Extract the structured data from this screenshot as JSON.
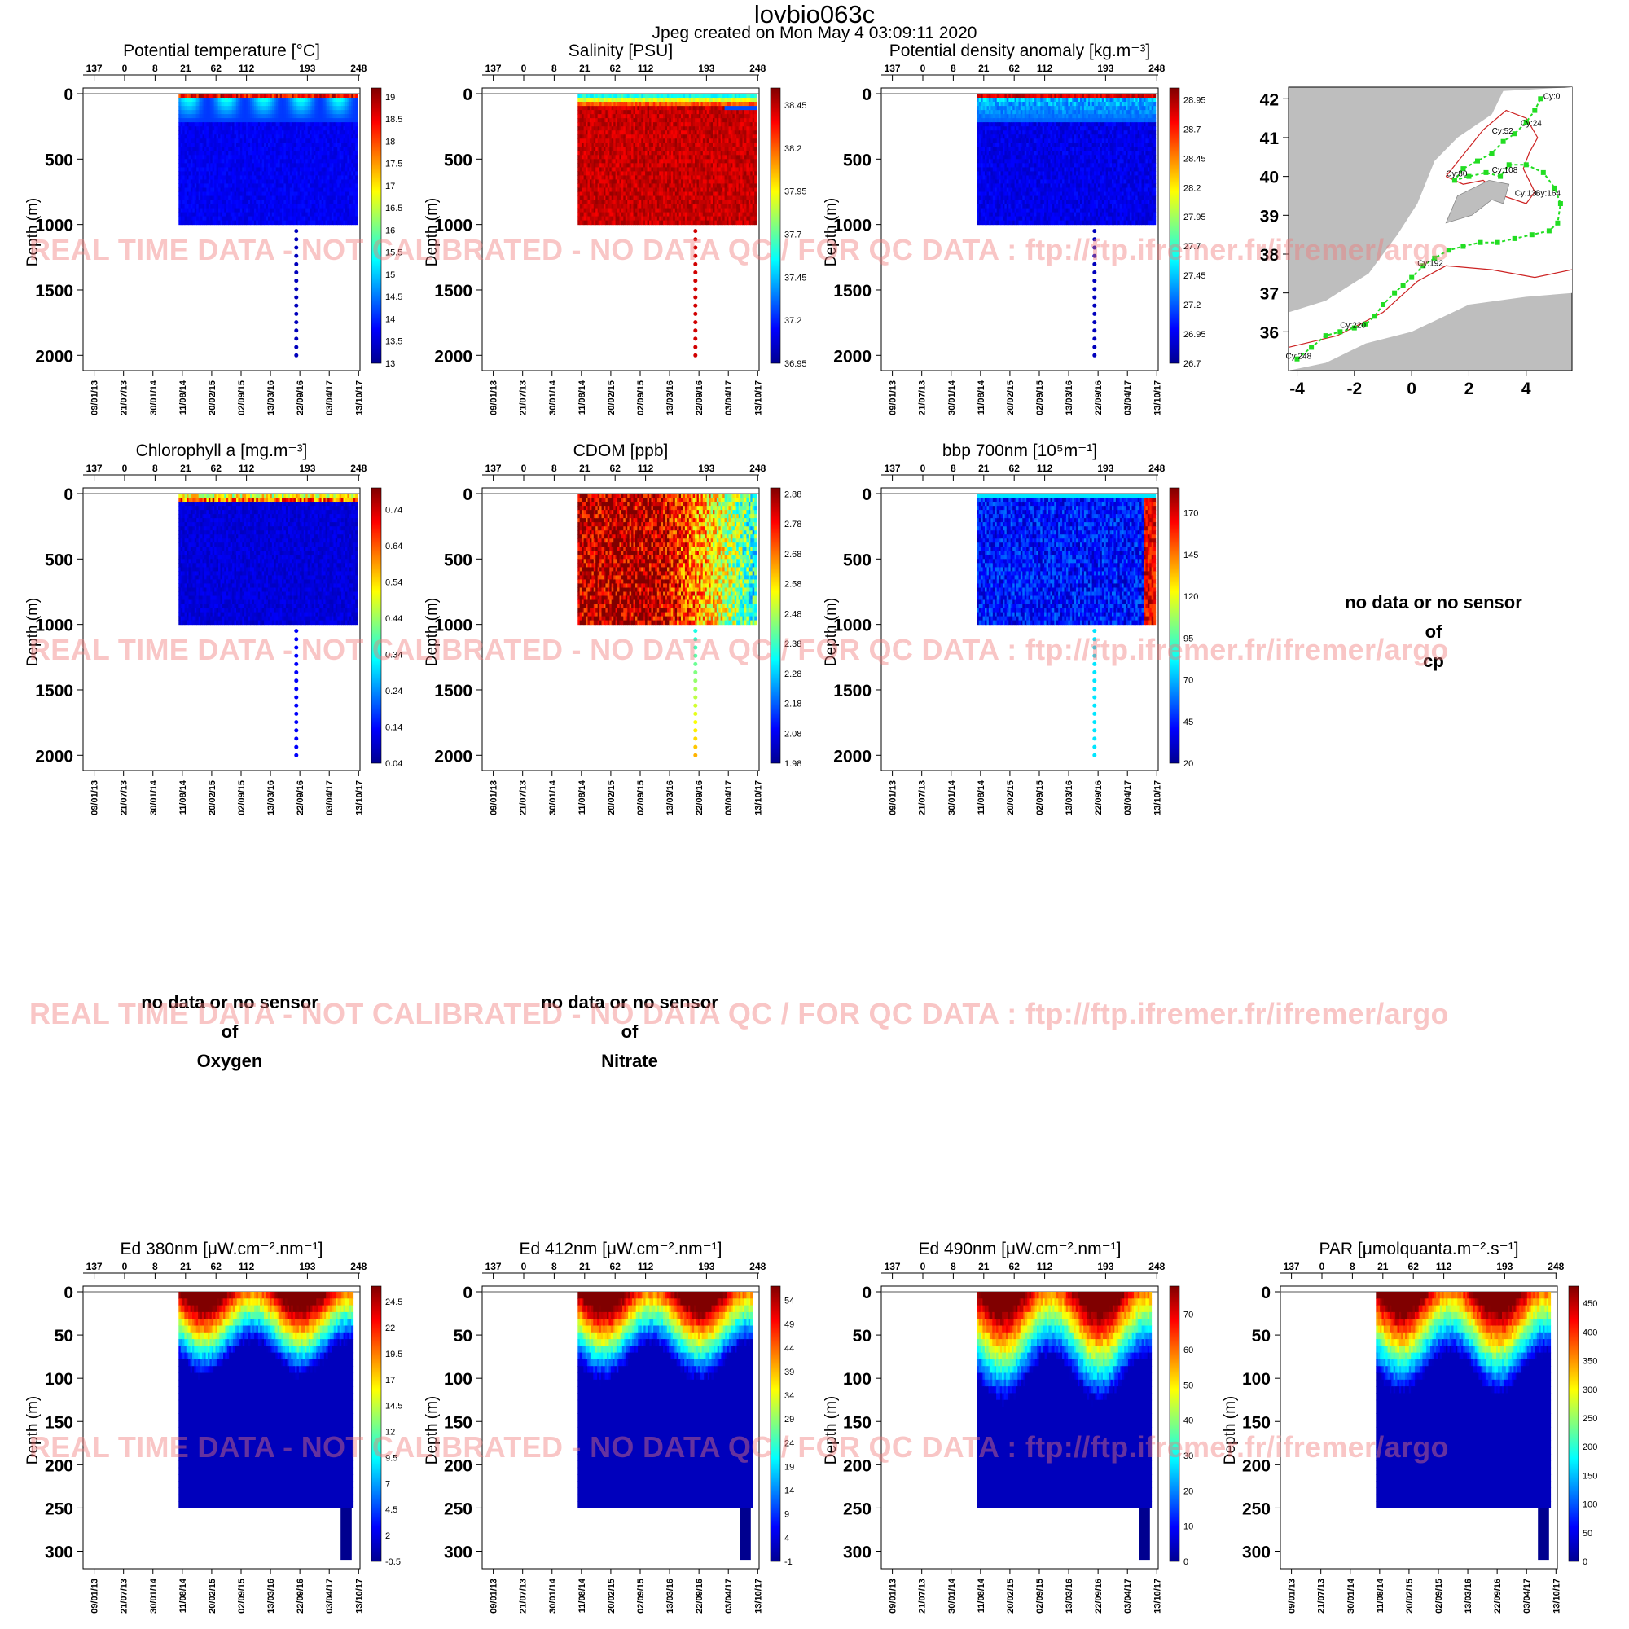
{
  "header": {
    "title": "lovbio063c",
    "subtitle": "Jpeg created on  Mon May  4 03:09:11 2020"
  },
  "watermark": "REAL TIME DATA - NOT CALIBRATED - NO DATA QC   /  FOR QC DATA : ftp://ftp.ifremer.fr/ifremer/argo",
  "no_data_panels": [
    {
      "line1": "no data or no sensor",
      "line2": "of",
      "line3": "cp"
    },
    {
      "line1": "no data or no sensor",
      "line2": "of",
      "line3": "Oxygen"
    },
    {
      "line1": "no data or no sensor",
      "line2": "of",
      "line3": "Nitrate"
    }
  ],
  "colors": {
    "colormap": [
      "#00008f",
      "#0000ff",
      "#0080ff",
      "#00ffff",
      "#80ff80",
      "#ffff00",
      "#ff8000",
      "#ff0000",
      "#800000"
    ],
    "land": "#bebebe",
    "sea": "#ffffff",
    "track": "#22dd22",
    "isobath_red": "#cc2222",
    "watermark": "#f07878"
  },
  "chart_data": [
    {
      "type": "heatmap",
      "title": "Potential temperature [°C]",
      "ylabel": "Depth (m)",
      "cycle_ticks": [
        "137",
        "0",
        "8",
        "21",
        "62",
        "112",
        "193",
        "248"
      ],
      "date_ticks": [
        "09/01/13",
        "21/07/13",
        "30/01/14",
        "11/08/14",
        "20/02/15",
        "02/09/15",
        "13/03/16",
        "22/09/16",
        "03/04/17",
        "13/10/17"
      ],
      "ylim": [
        2000,
        0
      ],
      "y_ticks": [
        "0",
        "500",
        "1000",
        "1500",
        "2000"
      ],
      "colorbar": {
        "range": [
          13,
          19.2
        ],
        "tick_labels": [
          "19",
          "18.5",
          "18",
          "17.5",
          "17",
          "16.5",
          "16",
          "15.5",
          "15",
          "14.5",
          "14",
          "13.5",
          "13"
        ]
      },
      "profile_depth_max": 1000,
      "deep_profile_depth": 2000
    },
    {
      "type": "heatmap",
      "title": "Salinity [PSU]",
      "ylabel": "Depth (m)",
      "cycle_ticks": [
        "137",
        "0",
        "8",
        "21",
        "62",
        "112",
        "193",
        "248"
      ],
      "date_ticks": [
        "09/01/13",
        "21/07/13",
        "30/01/14",
        "11/08/14",
        "20/02/15",
        "02/09/15",
        "13/03/16",
        "22/09/16",
        "03/04/17",
        "13/10/17"
      ],
      "ylim": [
        2000,
        0
      ],
      "y_ticks": [
        "0",
        "500",
        "1000",
        "1500",
        "2000"
      ],
      "colorbar": {
        "range": [
          36.95,
          38.55
        ],
        "tick_labels": [
          "38.45",
          "38.2",
          "37.95",
          "37.7",
          "37.45",
          "37.2",
          "36.95"
        ]
      },
      "profile_depth_max": 1000,
      "deep_profile_depth": 2000
    },
    {
      "type": "heatmap",
      "title": "Potential density anomaly [kg.m⁻³]",
      "ylabel": "Depth (m)",
      "cycle_ticks": [
        "137",
        "0",
        "8",
        "21",
        "62",
        "112",
        "193",
        "248"
      ],
      "date_ticks": [
        "09/01/13",
        "21/07/13",
        "30/01/14",
        "11/08/14",
        "20/02/15",
        "02/09/15",
        "13/03/16",
        "22/09/16",
        "03/04/17",
        "13/10/17"
      ],
      "ylim": [
        2000,
        0
      ],
      "y_ticks": [
        "0",
        "500",
        "1000",
        "1500",
        "2000"
      ],
      "colorbar": {
        "range": [
          26.7,
          29.05
        ],
        "tick_labels": [
          "28.95",
          "28.7",
          "28.45",
          "28.2",
          "27.95",
          "27.7",
          "27.45",
          "27.2",
          "26.95",
          "26.7"
        ]
      },
      "profile_depth_max": 1000,
      "deep_profile_depth": 2000
    },
    {
      "type": "heatmap",
      "title": "Chlorophyll a [mg.m⁻³]",
      "ylabel": "Depth (m)",
      "cycle_ticks": [
        "137",
        "0",
        "8",
        "21",
        "62",
        "112",
        "193",
        "248"
      ],
      "date_ticks": [
        "09/01/13",
        "21/07/13",
        "30/01/14",
        "11/08/14",
        "20/02/15",
        "02/09/15",
        "13/03/16",
        "22/09/16",
        "03/04/17",
        "13/10/17"
      ],
      "ylim": [
        2000,
        0
      ],
      "y_ticks": [
        "0",
        "500",
        "1000",
        "1500",
        "2000"
      ],
      "colorbar": {
        "range": [
          0.04,
          0.8
        ],
        "tick_labels": [
          "0.74",
          "0.64",
          "0.54",
          "0.44",
          "0.34",
          "0.24",
          "0.14",
          "0.04"
        ]
      },
      "profile_depth_max": 1000,
      "deep_profile_depth": 2000
    },
    {
      "type": "heatmap",
      "title": "CDOM  [ppb]",
      "ylabel": "Depth (m)",
      "cycle_ticks": [
        "137",
        "0",
        "8",
        "21",
        "62",
        "112",
        "193",
        "248"
      ],
      "date_ticks": [
        "09/01/13",
        "21/07/13",
        "30/01/14",
        "11/08/14",
        "20/02/15",
        "02/09/15",
        "13/03/16",
        "22/09/16",
        "03/04/17",
        "13/10/17"
      ],
      "ylim": [
        2000,
        0
      ],
      "y_ticks": [
        "0",
        "500",
        "1000",
        "1500",
        "2000"
      ],
      "colorbar": {
        "range": [
          1.98,
          2.9
        ],
        "tick_labels": [
          "2.88",
          "2.78",
          "2.68",
          "2.58",
          "2.48",
          "2.38",
          "2.28",
          "2.18",
          "2.08",
          "1.98"
        ]
      },
      "profile_depth_max": 1000,
      "deep_profile_depth": 2000
    },
    {
      "type": "heatmap",
      "title": "bbp 700nm [10⁵m⁻¹]",
      "ylabel": "Depth (m)",
      "cycle_ticks": [
        "137",
        "0",
        "8",
        "21",
        "62",
        "112",
        "193",
        "248"
      ],
      "date_ticks": [
        "09/01/13",
        "21/07/13",
        "30/01/14",
        "11/08/14",
        "20/02/15",
        "02/09/15",
        "13/03/16",
        "22/09/16",
        "03/04/17",
        "13/10/17"
      ],
      "ylim": [
        2000,
        0
      ],
      "y_ticks": [
        "0",
        "500",
        "1000",
        "1500",
        "2000"
      ],
      "colorbar": {
        "range": [
          20,
          185
        ],
        "tick_labels": [
          "170",
          "145",
          "120",
          "95",
          "70",
          "45",
          "20"
        ]
      },
      "profile_depth_max": 1000,
      "deep_profile_depth": 2000
    },
    {
      "type": "heatmap",
      "title": "Ed 380nm [μW.cm⁻².nm⁻¹]",
      "ylabel": "Depth (m)",
      "cycle_ticks": [
        "137",
        "0",
        "8",
        "21",
        "62",
        "112",
        "193",
        "248"
      ],
      "date_ticks": [
        "09/01/13",
        "21/07/13",
        "30/01/14",
        "11/08/14",
        "20/02/15",
        "02/09/15",
        "13/03/16",
        "22/09/16",
        "03/04/17",
        "13/10/17"
      ],
      "ylim": [
        310,
        0
      ],
      "y_ticks": [
        "0",
        "50",
        "100",
        "150",
        "200",
        "250",
        "300"
      ],
      "colorbar": {
        "range": [
          -0.5,
          26
        ],
        "tick_labels": [
          "24.5",
          "22",
          "19.5",
          "17",
          "14.5",
          "12",
          "9.5",
          "7",
          "4.5",
          "2",
          "-0.5"
        ]
      },
      "profile_depth_max": 250,
      "deep_profile_depth": 310
    },
    {
      "type": "heatmap",
      "title": "Ed 412nm [μW.cm⁻².nm⁻¹]",
      "ylabel": "Depth (m)",
      "cycle_ticks": [
        "137",
        "0",
        "8",
        "21",
        "62",
        "112",
        "193",
        "248"
      ],
      "date_ticks": [
        "09/01/13",
        "21/07/13",
        "30/01/14",
        "11/08/14",
        "20/02/15",
        "02/09/15",
        "13/03/16",
        "22/09/16",
        "03/04/17",
        "13/10/17"
      ],
      "ylim": [
        310,
        0
      ],
      "y_ticks": [
        "0",
        "50",
        "100",
        "150",
        "200",
        "250",
        "300"
      ],
      "colorbar": {
        "range": [
          -1,
          57
        ],
        "tick_labels": [
          "54",
          "49",
          "44",
          "39",
          "34",
          "29",
          "24",
          "19",
          "14",
          "9",
          "4",
          "-1"
        ]
      },
      "profile_depth_max": 250,
      "deep_profile_depth": 310
    },
    {
      "type": "heatmap",
      "title": "Ed 490nm [μW.cm⁻².nm⁻¹]",
      "ylabel": "Depth (m)",
      "cycle_ticks": [
        "137",
        "0",
        "8",
        "21",
        "62",
        "112",
        "193",
        "248"
      ],
      "date_ticks": [
        "09/01/13",
        "21/07/13",
        "30/01/14",
        "11/08/14",
        "20/02/15",
        "02/09/15",
        "13/03/16",
        "22/09/16",
        "03/04/17",
        "13/10/17"
      ],
      "ylim": [
        310,
        0
      ],
      "y_ticks": [
        "0",
        "50",
        "100",
        "150",
        "200",
        "250",
        "300"
      ],
      "colorbar": {
        "range": [
          0,
          78
        ],
        "tick_labels": [
          "70",
          "60",
          "50",
          "40",
          "30",
          "20",
          "10",
          "0"
        ]
      },
      "profile_depth_max": 250,
      "deep_profile_depth": 310
    },
    {
      "type": "heatmap",
      "title": "PAR [μmolquanta.m⁻².s⁻¹]",
      "ylabel": "Depth (m)",
      "cycle_ticks": [
        "137",
        "0",
        "8",
        "21",
        "62",
        "112",
        "193",
        "248"
      ],
      "date_ticks": [
        "09/01/13",
        "21/07/13",
        "30/01/14",
        "11/08/14",
        "20/02/15",
        "02/09/15",
        "13/03/16",
        "22/09/16",
        "03/04/17",
        "13/10/17"
      ],
      "ylim": [
        310,
        0
      ],
      "y_ticks": [
        "0",
        "50",
        "100",
        "150",
        "200",
        "250",
        "300"
      ],
      "colorbar": {
        "range": [
          0,
          480
        ],
        "tick_labels": [
          "450",
          "400",
          "350",
          "300",
          "250",
          "200",
          "150",
          "100",
          "50",
          "0"
        ]
      },
      "profile_depth_max": 250,
      "deep_profile_depth": 310
    },
    {
      "type": "scatter",
      "title": "",
      "xlim": [
        -4.3,
        5.6
      ],
      "ylim": [
        35.0,
        42.3
      ],
      "x_ticks": [
        -4,
        -2,
        0,
        2,
        4
      ],
      "y_ticks": [
        36,
        37,
        38,
        39,
        40,
        41,
        42
      ],
      "trajectory": [
        [
          4.5,
          42.0
        ],
        [
          4.3,
          41.7
        ],
        [
          4.0,
          41.4
        ],
        [
          3.6,
          41.1
        ],
        [
          3.2,
          40.9
        ],
        [
          2.8,
          40.6
        ],
        [
          2.3,
          40.4
        ],
        [
          1.8,
          40.2
        ],
        [
          1.5,
          39.9
        ],
        [
          2.0,
          40.0
        ],
        [
          2.6,
          40.1
        ],
        [
          3.1,
          40.0
        ],
        [
          3.4,
          40.3
        ],
        [
          4.0,
          40.3
        ],
        [
          4.6,
          40.1
        ],
        [
          5.0,
          39.7
        ],
        [
          5.2,
          39.3
        ],
        [
          5.1,
          38.8
        ],
        [
          4.8,
          38.6
        ],
        [
          4.2,
          38.5
        ],
        [
          3.6,
          38.4
        ],
        [
          3.0,
          38.3
        ],
        [
          2.4,
          38.3
        ],
        [
          1.8,
          38.2
        ],
        [
          1.3,
          38.1
        ],
        [
          0.8,
          37.9
        ],
        [
          0.4,
          37.7
        ],
        [
          0.0,
          37.4
        ],
        [
          -0.3,
          37.2
        ],
        [
          -0.6,
          37.0
        ],
        [
          -1.0,
          36.7
        ],
        [
          -1.3,
          36.4
        ],
        [
          -1.6,
          36.2
        ],
        [
          -2.0,
          36.1
        ],
        [
          -2.5,
          36.0
        ],
        [
          -3.0,
          35.9
        ],
        [
          -3.5,
          35.6
        ],
        [
          -4.0,
          35.3
        ]
      ],
      "labels": [
        {
          "text": "Cy:0",
          "lon": 4.6,
          "lat": 42.0
        },
        {
          "text": "Cy:24",
          "lon": 3.8,
          "lat": 41.3
        },
        {
          "text": "Cy:52",
          "lon": 2.8,
          "lat": 41.1
        },
        {
          "text": "Cy:80",
          "lon": 1.2,
          "lat": 40.0
        },
        {
          "text": "Cy:108",
          "lon": 2.8,
          "lat": 40.1
        },
        {
          "text": "Cy:136",
          "lon": 3.6,
          "lat": 39.5
        },
        {
          "text": "Cy:164",
          "lon": 4.3,
          "lat": 39.5
        },
        {
          "text": "Cy:192",
          "lon": 0.2,
          "lat": 37.7
        },
        {
          "text": "Cy:220",
          "lon": -2.5,
          "lat": 36.1
        },
        {
          "text": "Cy:248",
          "lon": -4.4,
          "lat": 35.3
        }
      ]
    }
  ]
}
